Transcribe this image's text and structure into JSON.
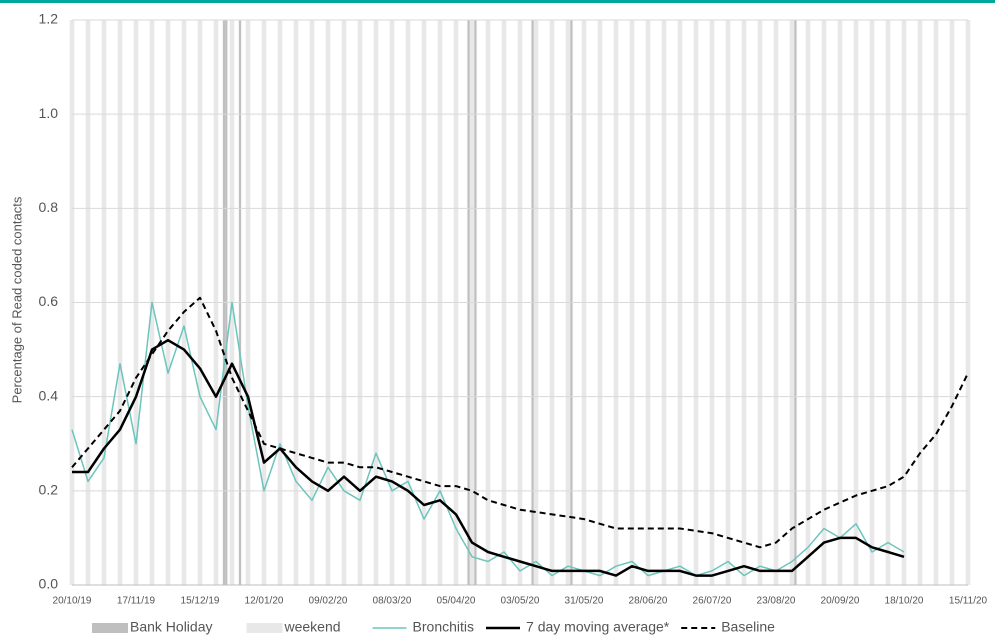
{
  "chart_data": {
    "type": "line",
    "y_label": "Percentage  of Read  coded contacts",
    "x": [
      "20/10/19",
      "27/10/19",
      "03/11/19",
      "10/11/19",
      "17/11/19",
      "24/11/19",
      "01/12/19",
      "08/12/19",
      "15/12/19",
      "22/12/19",
      "29/12/19",
      "05/01/20",
      "12/01/20",
      "19/01/20",
      "26/01/20",
      "02/02/20",
      "09/02/20",
      "16/02/20",
      "23/02/20",
      "01/03/20",
      "08/03/20",
      "15/03/20",
      "22/03/20",
      "29/03/20",
      "05/04/20",
      "12/04/20",
      "19/04/20",
      "26/04/20",
      "03/05/20",
      "10/05/20",
      "17/05/20",
      "24/05/20",
      "31/05/20",
      "07/06/20",
      "14/06/20",
      "21/06/20",
      "28/06/20",
      "05/07/20",
      "12/07/20",
      "19/07/20",
      "26/07/20",
      "02/08/20",
      "09/08/20",
      "16/08/20",
      "23/08/20",
      "30/08/20",
      "06/09/20",
      "13/09/20",
      "20/09/20",
      "27/09/20",
      "04/10/20",
      "11/10/20",
      "18/10/20",
      "25/10/20",
      "01/11/20",
      "08/11/20",
      "15/11/20"
    ],
    "series": [
      {
        "name": "Bronchitis",
        "color": "#6cc5bd",
        "width": 1.5,
        "dash": null,
        "values": [
          0.33,
          0.22,
          0.27,
          0.47,
          0.3,
          0.6,
          0.45,
          0.55,
          0.4,
          0.33,
          0.6,
          0.38,
          0.2,
          0.3,
          0.22,
          0.18,
          0.25,
          0.2,
          0.18,
          0.28,
          0.2,
          0.22,
          0.14,
          0.2,
          0.12,
          0.06,
          0.05,
          0.07,
          0.03,
          0.05,
          0.02,
          0.04,
          0.03,
          0.02,
          0.04,
          0.05,
          0.02,
          0.03,
          0.04,
          0.02,
          0.03,
          0.05,
          0.02,
          0.04,
          0.03,
          0.05,
          0.08,
          0.12,
          0.1,
          0.13,
          0.07,
          0.09,
          0.07,
          null,
          null,
          null,
          null
        ]
      },
      {
        "name": "7 day moving average*",
        "color": "#000000",
        "width": 2.5,
        "dash": null,
        "values": [
          0.24,
          0.24,
          0.29,
          0.33,
          0.4,
          0.5,
          0.52,
          0.5,
          0.46,
          0.4,
          0.47,
          0.4,
          0.26,
          0.29,
          0.25,
          0.22,
          0.2,
          0.23,
          0.2,
          0.23,
          0.22,
          0.2,
          0.17,
          0.18,
          0.15,
          0.09,
          0.07,
          0.06,
          0.05,
          0.04,
          0.03,
          0.03,
          0.03,
          0.03,
          0.02,
          0.04,
          0.03,
          0.03,
          0.03,
          0.02,
          0.02,
          0.03,
          0.04,
          0.03,
          0.03,
          0.03,
          0.06,
          0.09,
          0.1,
          0.1,
          0.08,
          0.07,
          0.06,
          null,
          null,
          null,
          null
        ]
      },
      {
        "name": "Baseline",
        "color": "#000000",
        "width": 2,
        "dash": "6,4",
        "values": [
          0.25,
          0.29,
          0.33,
          0.37,
          0.44,
          0.49,
          0.54,
          0.58,
          0.61,
          0.54,
          0.44,
          0.37,
          0.3,
          0.29,
          0.28,
          0.27,
          0.26,
          0.26,
          0.25,
          0.25,
          0.24,
          0.23,
          0.22,
          0.21,
          0.21,
          0.2,
          0.18,
          0.17,
          0.16,
          0.155,
          0.15,
          0.145,
          0.14,
          0.13,
          0.12,
          0.12,
          0.12,
          0.12,
          0.12,
          0.115,
          0.11,
          0.1,
          0.09,
          0.08,
          0.09,
          0.12,
          0.14,
          0.16,
          0.175,
          0.19,
          0.2,
          0.21,
          0.23,
          0.28,
          0.32,
          0.38,
          0.45
        ]
      }
    ],
    "bank_holiday": {
      "name": "Bank Holiday",
      "color": "#bfbfbf",
      "dates": [
        "25/12/19",
        "26/12/19",
        "01/01/20",
        "10/04/20",
        "13/04/20",
        "08/05/20",
        "25/05/20",
        "31/08/20"
      ]
    },
    "weekend": {
      "name": "weekend",
      "color": "#e8e8e8"
    },
    "xlim": [
      "20/10/19",
      "15/11/20"
    ],
    "xticks": [
      "20/10/19",
      "17/11/19",
      "15/12/19",
      "12/01/20",
      "09/02/20",
      "08/03/20",
      "05/04/20",
      "03/05/20",
      "31/05/20",
      "28/06/20",
      "26/07/20",
      "23/08/20",
      "20/09/20",
      "18/10/20",
      "15/11/20"
    ],
    "ylim": [
      0,
      1.2
    ],
    "yticks": [
      {
        "value": 0,
        "label": "0.0"
      },
      {
        "value": 0.2,
        "label": "0.2"
      },
      {
        "value": 0.4,
        "label": "0.4"
      },
      {
        "value": 0.6,
        "label": "0.6"
      },
      {
        "value": 0.8,
        "label": "0.8"
      },
      {
        "value": 1.0,
        "label": "1.0"
      },
      {
        "value": 1.2,
        "label": "1.2"
      }
    ],
    "grid": true
  }
}
